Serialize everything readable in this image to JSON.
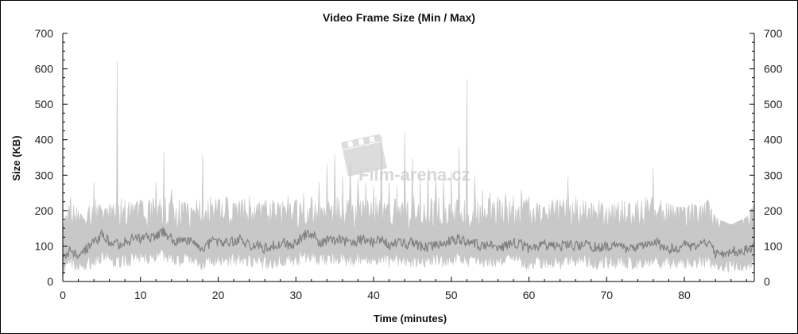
{
  "chart_data": {
    "type": "area",
    "title": "Video Frame Size (Min / Max)",
    "xlabel": "Time (minutes)",
    "ylabel": "Size (KB)",
    "xlim": [
      0,
      89
    ],
    "ylim": [
      0,
      700
    ],
    "xticks": [
      0,
      10,
      20,
      30,
      40,
      50,
      60,
      70,
      80
    ],
    "yticks": [
      0,
      100,
      200,
      300,
      400,
      500,
      600,
      700
    ],
    "right_axis": true,
    "grid": false,
    "colors": {
      "max": "#c8c8c8",
      "min": "#808080"
    },
    "x": [
      0,
      1,
      2,
      3,
      4,
      5,
      6,
      7,
      8,
      9,
      10,
      11,
      12,
      13,
      14,
      15,
      16,
      17,
      18,
      19,
      20,
      21,
      22,
      23,
      24,
      25,
      26,
      27,
      28,
      29,
      30,
      31,
      32,
      33,
      34,
      35,
      36,
      37,
      38,
      39,
      40,
      41,
      42,
      43,
      44,
      45,
      46,
      47,
      48,
      49,
      50,
      51,
      52,
      53,
      54,
      55,
      56,
      57,
      58,
      59,
      60,
      61,
      62,
      63,
      64,
      65,
      66,
      67,
      68,
      69,
      70,
      71,
      72,
      73,
      74,
      75,
      76,
      77,
      78,
      79,
      80,
      81,
      82,
      83,
      84,
      85,
      86,
      87,
      88,
      89
    ],
    "series": [
      {
        "key": "max",
        "values": [
          150,
          240,
          200,
          170,
          280,
          200,
          210,
          620,
          230,
          220,
          230,
          220,
          280,
          365,
          260,
          230,
          220,
          200,
          360,
          240,
          230,
          240,
          220,
          230,
          240,
          220,
          230,
          230,
          220,
          240,
          230,
          250,
          240,
          280,
          330,
          360,
          300,
          340,
          290,
          280,
          270,
          410,
          280,
          270,
          420,
          350,
          300,
          320,
          290,
          290,
          310,
          380,
          570,
          300,
          260,
          250,
          240,
          250,
          240,
          260,
          240,
          220,
          210,
          230,
          230,
          295,
          240,
          230,
          220,
          230,
          210,
          220,
          230,
          220,
          230,
          240,
          320,
          230,
          220,
          210,
          210,
          220,
          210,
          230,
          180,
          170,
          160,
          170,
          180,
          220
        ]
      },
      {
        "key": "min",
        "values": [
          60,
          90,
          70,
          90,
          110,
          130,
          110,
          105,
          110,
          120,
          120,
          125,
          130,
          140,
          120,
          110,
          115,
          110,
          90,
          110,
          115,
          110,
          115,
          120,
          105,
          100,
          95,
          100,
          110,
          105,
          110,
          130,
          135,
          110,
          115,
          120,
          115,
          110,
          115,
          120,
          110,
          115,
          105,
          110,
          105,
          110,
          100,
          95,
          105,
          110,
          115,
          120,
          110,
          105,
          100,
          100,
          95,
          100,
          110,
          105,
          90,
          100,
          105,
          100,
          95,
          110,
          100,
          105,
          100,
          95,
          100,
          100,
          95,
          90,
          100,
          105,
          115,
          100,
          95,
          90,
          100,
          95,
          100,
          110,
          80,
          80,
          85,
          85,
          90,
          100
        ]
      }
    ]
  },
  "watermark": "Film-arena.cz"
}
